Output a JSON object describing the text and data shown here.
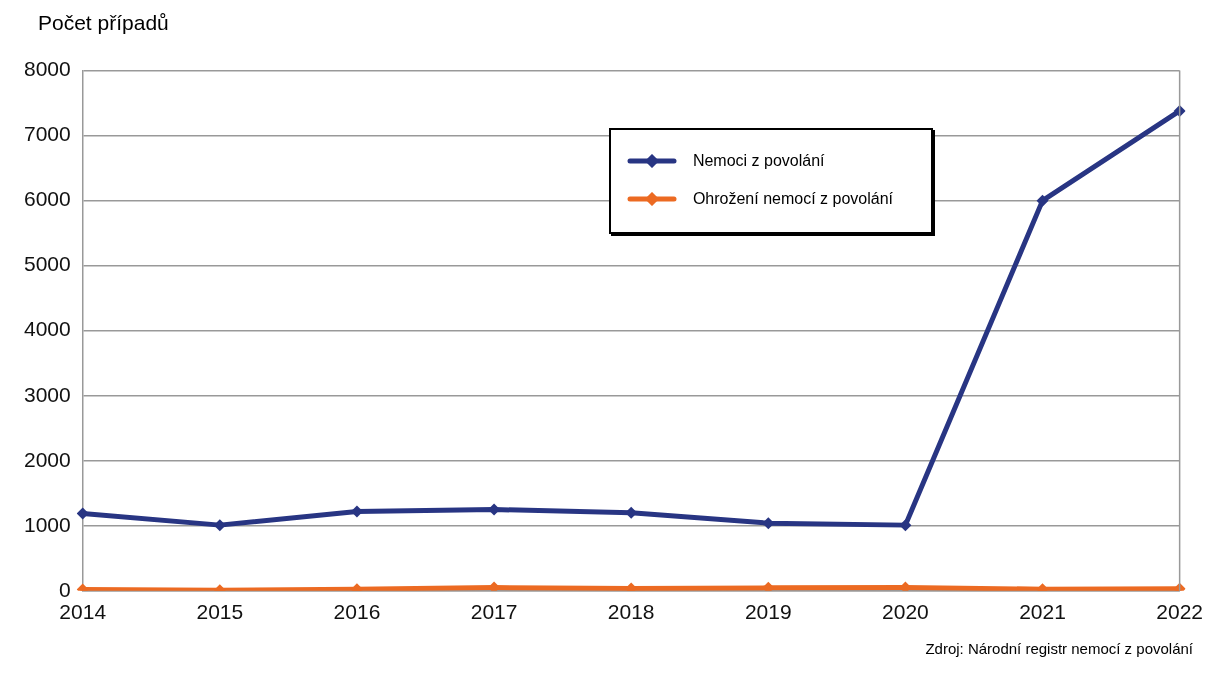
{
  "chart_data": {
    "type": "line",
    "ylabel": "Počet případů",
    "categories": [
      "2014",
      "2015",
      "2016",
      "2017",
      "2018",
      "2019",
      "2020",
      "2021",
      "2022"
    ],
    "series": [
      {
        "name": "Nemoci z povolání",
        "color": "#283583",
        "values": [
          1190,
          1010,
          1220,
          1250,
          1200,
          1040,
          1010,
          6000,
          7380
        ]
      },
      {
        "name": "Ohrožení nemocí z povolání",
        "color": "#ec6a22",
        "values": [
          20,
          10,
          25,
          50,
          35,
          45,
          50,
          25,
          30
        ]
      }
    ],
    "ylim": [
      0,
      8000
    ],
    "yticks": [
      0,
      1000,
      2000,
      3000,
      4000,
      5000,
      6000,
      7000,
      8000
    ],
    "grid": "y",
    "legend": "top right",
    "marker": "diamond",
    "line_style": "solid",
    "annotations": [
      "Zdroj: Národní registr nemocí z povolání"
    ]
  }
}
